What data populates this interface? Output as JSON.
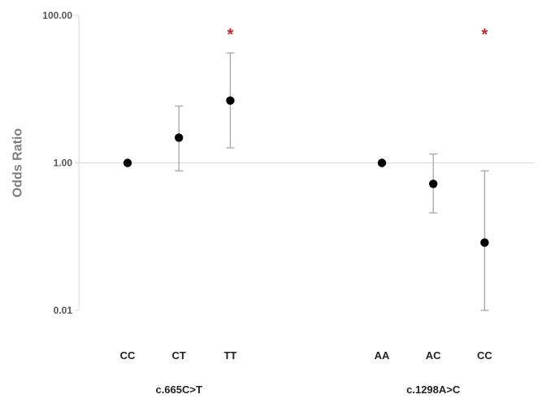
{
  "chart_data": {
    "type": "scatter",
    "title": "",
    "ylabel": "Odds Ratio",
    "xlabel": "",
    "yscale": "log",
    "ylim": [
      0.01,
      100
    ],
    "yticks": [
      {
        "value": 0.01,
        "label": "0.01"
      },
      {
        "value": 1,
        "label": "1.00"
      },
      {
        "value": 100,
        "label": "100.00"
      }
    ],
    "reference_line": 1,
    "grid": false,
    "colors": {
      "marker": "#000000",
      "error_bar": "#a6a6a6",
      "significance": "#cc2222",
      "axis": "#d9d9d9"
    },
    "groups": [
      {
        "label": "c.665C>T",
        "points": [
          {
            "category": "CC",
            "or": 1.0,
            "ci_low": 1.0,
            "ci_high": 1.0,
            "significant": false
          },
          {
            "category": "CT",
            "or": 2.2,
            "ci_low": 0.78,
            "ci_high": 5.9,
            "significant": false
          },
          {
            "category": "TT",
            "or": 7.0,
            "ci_low": 1.6,
            "ci_high": 31.0,
            "significant": true,
            "sig_label": "*"
          }
        ]
      },
      {
        "label": "c.1298A>C",
        "points": [
          {
            "category": "AA",
            "or": 1.0,
            "ci_low": 1.0,
            "ci_high": 1.0,
            "significant": false
          },
          {
            "category": "AC",
            "or": 0.52,
            "ci_low": 0.21,
            "ci_high": 1.32,
            "significant": false
          },
          {
            "category": "CC",
            "or": 0.083,
            "ci_low": 0.01,
            "ci_high": 0.78,
            "significant": true,
            "sig_label": "*"
          }
        ]
      }
    ]
  }
}
